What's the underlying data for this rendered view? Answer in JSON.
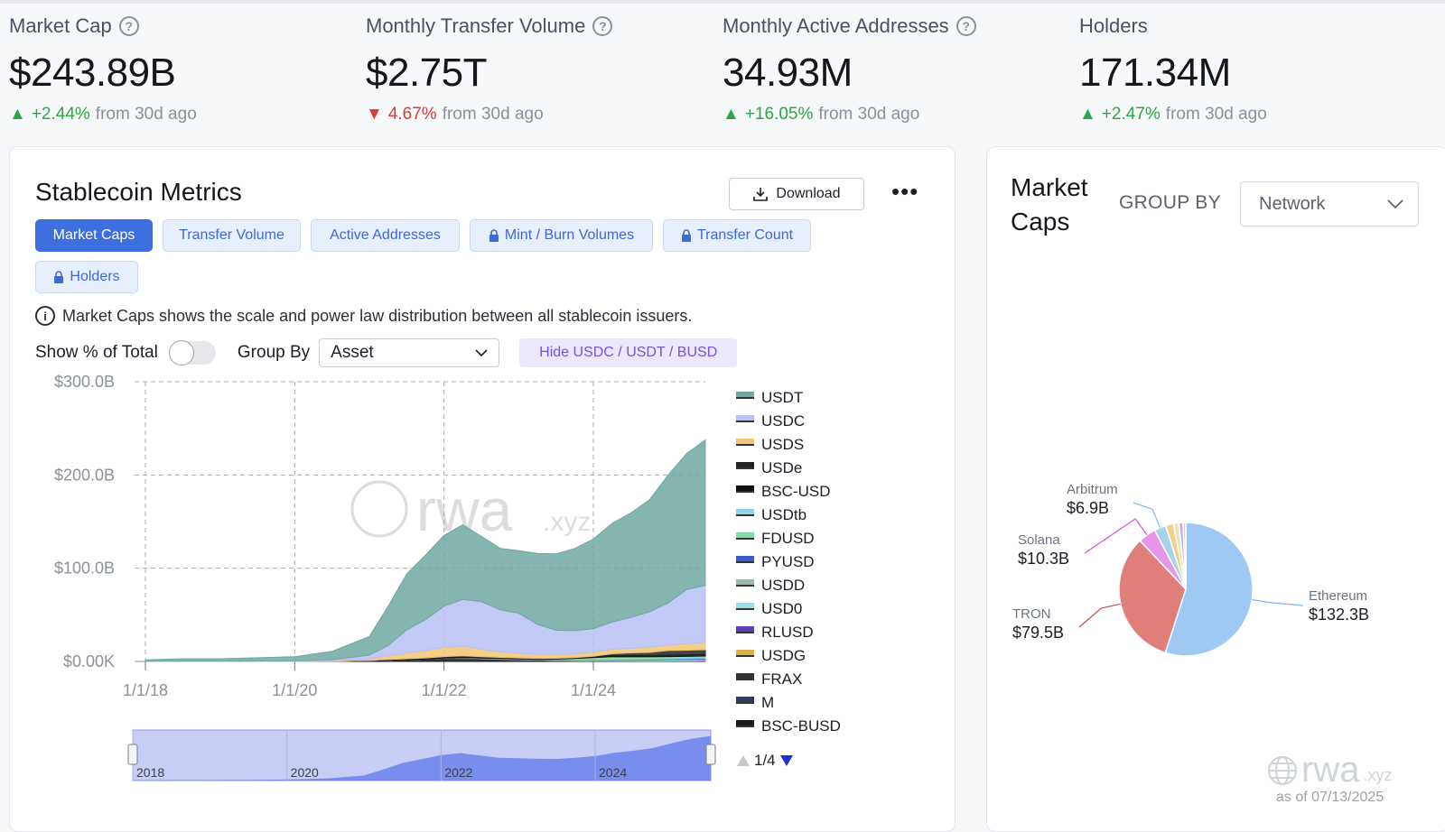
{
  "stats": [
    {
      "label": "Market Cap",
      "has_help": true,
      "value": "$243.89B",
      "dir": "up",
      "arrow": "▲",
      "pct": "+2.44%",
      "suffix": "from 30d ago"
    },
    {
      "label": "Monthly Transfer Volume",
      "has_help": true,
      "value": "$2.75T",
      "dir": "down",
      "arrow": "▼",
      "pct": "4.67%",
      "suffix": "from 30d ago"
    },
    {
      "label": "Monthly Active Addresses",
      "has_help": true,
      "value": "34.93M",
      "dir": "up",
      "arrow": "▲",
      "pct": "+16.05%",
      "suffix": "from 30d ago"
    },
    {
      "label": "Holders",
      "has_help": false,
      "value": "171.34M",
      "dir": "up",
      "arrow": "▲",
      "pct": "+2.47%",
      "suffix": "from 30d ago"
    }
  ],
  "metrics": {
    "title": "Stablecoin Metrics",
    "download_label": "Download",
    "more_label": "•••",
    "tabs": [
      {
        "label": "Market Caps",
        "active": true,
        "locked": false
      },
      {
        "label": "Transfer Volume",
        "active": false,
        "locked": false
      },
      {
        "label": "Active Addresses",
        "active": false,
        "locked": false
      },
      {
        "label": "Mint / Burn Volumes",
        "active": false,
        "locked": true
      },
      {
        "label": "Transfer Count",
        "active": false,
        "locked": true
      },
      {
        "label": "Holders",
        "active": false,
        "locked": true
      }
    ],
    "info_text": "Market Caps shows the scale and power law distribution between all stablecoin issuers.",
    "show_pct_label": "Show % of Total",
    "show_pct_on": false,
    "group_by_label": "Group By",
    "group_by_value": "Asset",
    "hide_button": "Hide USDC / USDT / BUSD",
    "pager": "1/4"
  },
  "right_panel": {
    "title": "Market Caps",
    "group_by_label": "GROUP BY",
    "group_by_value": "Network",
    "watermark": "rwa",
    "watermark_suffix": ".xyz",
    "as_of": "as of 07/13/2025"
  },
  "chart_data": [
    {
      "type": "area",
      "title": "",
      "stacked": true,
      "watermark": "rwa.xyz",
      "ylim": [
        0,
        300
      ],
      "yticks": [
        "$300.0B",
        "$200.0B",
        "$100.0B",
        "$0.00K"
      ],
      "xticks": [
        "1/1/18",
        "1/1/20",
        "1/1/22",
        "1/1/24"
      ],
      "navigator_ticks": [
        "2018",
        "2020",
        "2022",
        "2024"
      ],
      "x": [
        2018.0,
        2018.5,
        2019.0,
        2019.5,
        2020.0,
        2020.5,
        2021.0,
        2021.25,
        2021.5,
        2021.75,
        2022.0,
        2022.25,
        2022.5,
        2022.75,
        2023.0,
        2023.25,
        2023.5,
        2023.75,
        2024.0,
        2024.25,
        2024.5,
        2024.75,
        2025.0,
        2025.25,
        2025.5
      ],
      "series": [
        {
          "name": "USDT",
          "color": "#6fa8a0",
          "values": [
            1.5,
            2.5,
            2.5,
            3.5,
            4.5,
            9,
            20,
            42,
            60,
            69,
            76,
            80,
            70,
            66,
            67,
            76,
            82,
            88,
            96,
            106,
            112,
            120,
            137,
            146,
            156
          ]
        },
        {
          "name": "USDC",
          "color": "#b8bff6",
          "values": [
            0.2,
            0.3,
            0.3,
            0.4,
            0.5,
            1.2,
            4,
            11,
            25,
            33,
            44,
            50,
            51,
            45,
            43,
            32,
            26,
            25,
            25,
            29,
            33,
            38,
            45,
            58,
            61
          ]
        },
        {
          "name": "USDS",
          "color": "#f0c674",
          "values": [
            0.05,
            0.1,
            0.1,
            0.1,
            0.1,
            0.3,
            1.5,
            4,
            6,
            8,
            10,
            10.5,
            8,
            6,
            5,
            4.5,
            4,
            4,
            4.5,
            5,
            5,
            5.5,
            6,
            7,
            8
          ]
        },
        {
          "name": "USDe",
          "color": "#222222",
          "values": [
            0,
            0,
            0,
            0,
            0,
            0,
            0,
            0,
            0,
            0,
            0,
            0,
            0,
            0,
            0,
            0,
            0,
            0,
            0.5,
            2,
            3,
            3.5,
            5,
            5,
            5
          ]
        },
        {
          "name": "BSC-USD",
          "color": "#111111",
          "values": [
            0,
            0,
            0,
            0,
            0,
            0.1,
            0.5,
            0.8,
            1,
            1.3,
            1.5,
            1.6,
            1.4,
            1.3,
            1.2,
            1.1,
            1,
            1,
            1,
            1.1,
            1.2,
            1.3,
            1.5,
            1.6,
            1.7
          ]
        },
        {
          "name": "USDtb",
          "color": "#8fd0ec",
          "values": [
            0,
            0,
            0,
            0,
            0,
            0,
            0,
            0,
            0,
            0,
            0,
            0,
            0,
            0,
            0,
            0,
            0,
            0,
            0,
            0,
            0,
            0,
            0.5,
            1,
            1.4
          ]
        },
        {
          "name": "FDUSD",
          "color": "#7fdc9f",
          "values": [
            0,
            0,
            0,
            0,
            0,
            0,
            0,
            0,
            0,
            0,
            0,
            0,
            0,
            0,
            0,
            0,
            0.5,
            1.5,
            2.5,
            3.5,
            3,
            2.5,
            2,
            1.5,
            1.2
          ]
        },
        {
          "name": "PYUSD",
          "color": "#3a5ccc",
          "values": [
            0,
            0,
            0,
            0,
            0,
            0,
            0,
            0,
            0,
            0,
            0,
            0,
            0,
            0,
            0,
            0,
            0,
            0.1,
            0.2,
            0.3,
            0.5,
            0.6,
            0.6,
            0.7,
            0.8
          ]
        },
        {
          "name": "USDD",
          "color": "#9bb8a8",
          "values": [
            0,
            0,
            0,
            0,
            0,
            0,
            0,
            0,
            0,
            0,
            0,
            0.2,
            0.6,
            0.7,
            0.7,
            0.7,
            0.7,
            0.7,
            0.7,
            0.7,
            0.7,
            0.7,
            0.7,
            0.7,
            0.7
          ]
        },
        {
          "name": "USD0",
          "color": "#9edcec",
          "values": [
            0,
            0,
            0,
            0,
            0,
            0,
            0,
            0,
            0,
            0,
            0,
            0,
            0,
            0,
            0,
            0,
            0,
            0,
            0,
            0,
            0.3,
            0.6,
            0.8,
            0.7,
            0.6
          ]
        },
        {
          "name": "RLUSD",
          "color": "#5a3fb8",
          "values": [
            0,
            0,
            0,
            0,
            0,
            0,
            0,
            0,
            0,
            0,
            0,
            0,
            0,
            0,
            0,
            0,
            0,
            0,
            0,
            0,
            0,
            0,
            0.05,
            0.1,
            0.3
          ]
        },
        {
          "name": "USDG",
          "color": "#d9b04a",
          "values": [
            0,
            0,
            0,
            0,
            0,
            0,
            0,
            0,
            0,
            0,
            0,
            0,
            0,
            0,
            0,
            0,
            0,
            0,
            0,
            0,
            0,
            0.05,
            0.1,
            0.2,
            0.3
          ]
        },
        {
          "name": "FRAX",
          "color": "#333333",
          "values": [
            0,
            0,
            0,
            0,
            0,
            0,
            0,
            0.2,
            0.6,
            1,
            2,
            2.7,
            1.8,
            1.4,
            1.1,
            1,
            0.9,
            0.7,
            0.6,
            0.5,
            0.4,
            0.35,
            0.3,
            0.3,
            0.3
          ]
        },
        {
          "name": "M",
          "color": "#2d3b5c",
          "values": [
            0,
            0,
            0,
            0,
            0,
            0,
            0,
            0,
            0,
            0,
            0,
            0,
            0,
            0,
            0,
            0,
            0,
            0,
            0,
            0,
            0,
            0.05,
            0.1,
            0.15,
            0.2
          ]
        },
        {
          "name": "BSC-BUSD",
          "color": "#1a1a1a",
          "values": [
            0,
            0,
            0,
            0,
            0,
            0.2,
            0.8,
            1,
            1.3,
            1.5,
            1.7,
            1.5,
            1.3,
            1,
            0.8,
            0.5,
            0.3,
            0.2,
            0.1,
            0.1,
            0.05,
            0.05,
            0.05,
            0.05,
            0.05
          ]
        }
      ]
    },
    {
      "type": "pie",
      "title": "Market Caps",
      "slices": [
        {
          "label": "Ethereum",
          "value": 132.3,
          "display": "$132.3B",
          "color": "#9ec9f5",
          "line": "#7fb4e8"
        },
        {
          "label": "TRON",
          "value": 79.5,
          "display": "$79.5B",
          "color": "#e07f7a",
          "line": "#d04e48"
        },
        {
          "label": "Solana",
          "value": 10.3,
          "display": "$10.3B",
          "color": "#e697ea",
          "line": "#d94be0"
        },
        {
          "label": "Arbitrum",
          "value": 6.9,
          "display": "$6.9B",
          "color": "#a8d3ee",
          "line": "#7cc0ea"
        },
        {
          "label": "",
          "value": 4.5,
          "display": "",
          "color": "#f0d08a",
          "line": ""
        },
        {
          "label": "",
          "value": 3.2,
          "display": "",
          "color": "#e9e4b0",
          "line": ""
        },
        {
          "label": "",
          "value": 2.4,
          "display": "",
          "color": "#c7a9e6",
          "line": ""
        },
        {
          "label": "",
          "value": 1.6,
          "display": "",
          "color": "#f3c9a6",
          "line": ""
        }
      ]
    }
  ]
}
